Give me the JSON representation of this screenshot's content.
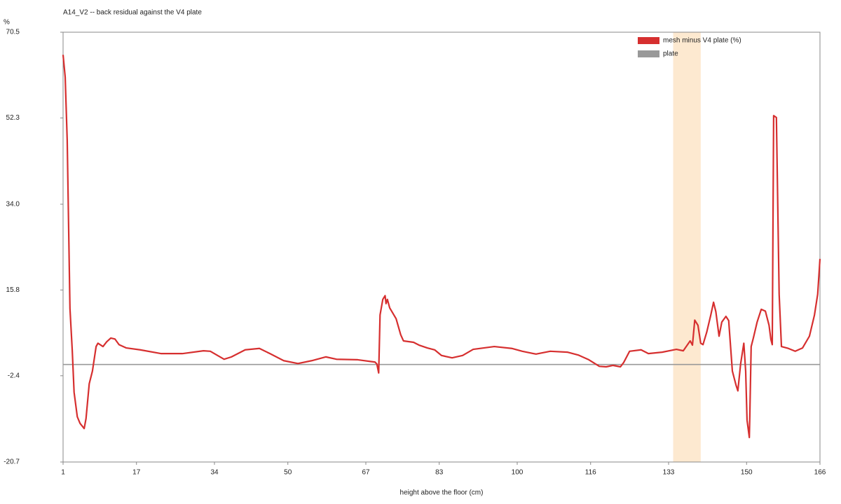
{
  "chart_data": {
    "type": "line",
    "title": "A14_V2 -- back residual against the V4 plate",
    "y_label": "%",
    "x_label": "height above the floor (cm)",
    "xlim": [
      1,
      166
    ],
    "xticks": [
      1,
      17,
      34,
      50,
      67,
      83,
      100,
      116,
      133,
      150,
      166
    ],
    "ylim": [
      -20.7,
      70.5
    ],
    "yticks": [
      -20.7,
      -2.4,
      15.8,
      {
        "value": 34,
        "label": "34.0"
      },
      52.3,
      70.5
    ],
    "grid": false,
    "legend": "upper right",
    "highlight_span": [
      134,
      140
    ],
    "highlight_color": "#fde9d0",
    "series": [
      {
        "name": "mesh minus V4 plate (%)",
        "color": "#d62f2f",
        "x": [
          1,
          1.46,
          1.9,
          2.2,
          2.5,
          3.0,
          3.4,
          4.1,
          4.7,
          5.6,
          6.0,
          6.7,
          7.4,
          8.2,
          8.6,
          9.7,
          10.5,
          11.4,
          12.3,
          13.2,
          14.8,
          17.8,
          22.4,
          27.0,
          31.6,
          33.1,
          36.1,
          37.7,
          40.7,
          43.8,
          46.1,
          49.1,
          52.2,
          55.2,
          58.3,
          60.6,
          65.2,
          69.0,
          69.4,
          69.8,
          70.1,
          70.7,
          71.2,
          71.4,
          71.7,
          72.2,
          73.6,
          74.6,
          75.2,
          77.4,
          78.6,
          80.4,
          82.0,
          83.5,
          85.8,
          88.1,
          90.4,
          95.0,
          98.8,
          101.1,
          104.1,
          107.2,
          111.0,
          113.3,
          115.6,
          117.9,
          119.4,
          120.9,
          122.5,
          123.2,
          124.5,
          127.0,
          128.6,
          131.6,
          134.7,
          136.2,
          137.7,
          138.2,
          138.7,
          139.4,
          140.0,
          140.5,
          141.3,
          142.2,
          142.8,
          143.3,
          144.0,
          144.6,
          145.5,
          146.1,
          146.9,
          147.7,
          148.1,
          148.7,
          149.4,
          149.8,
          150.1,
          150.6,
          150.7,
          151.0,
          151.5,
          152.3,
          153.2,
          154.1,
          154.9,
          155.3,
          155.6,
          155.9,
          156.5,
          157.1,
          157.6,
          159.1,
          160.6,
          162.2,
          163.7,
          164.8,
          165.5,
          166.0
        ],
        "values": [
          65.7,
          61.0,
          47.6,
          29.8,
          11.9,
          3.0,
          -5.9,
          -11.1,
          -12.5,
          -13.6,
          -11.5,
          -4.1,
          -1.4,
          3.8,
          4.5,
          3.8,
          4.8,
          5.6,
          5.4,
          4.2,
          3.5,
          3.1,
          2.3,
          2.3,
          2.9,
          2.8,
          1.1,
          1.6,
          3.1,
          3.4,
          2.3,
          0.8,
          0.2,
          0.8,
          1.6,
          1.1,
          1.0,
          0.5,
          0.1,
          -1.8,
          10.5,
          13.8,
          14.6,
          12.9,
          13.8,
          12.0,
          9.7,
          6.3,
          5.0,
          4.7,
          4.1,
          3.5,
          3.1,
          1.9,
          1.4,
          1.9,
          3.2,
          3.8,
          3.4,
          2.8,
          2.2,
          2.8,
          2.6,
          2.0,
          1.0,
          -0.4,
          -0.5,
          -0.2,
          -0.5,
          0.4,
          2.8,
          3.1,
          2.3,
          2.6,
          3.2,
          2.9,
          5.0,
          4.1,
          9.4,
          8.3,
          4.5,
          4.2,
          6.8,
          10.5,
          13.2,
          11.2,
          6.0,
          9.0,
          10.2,
          9.3,
          -1.4,
          -4.4,
          -5.6,
          0.1,
          4.5,
          -1.4,
          -11.8,
          -15.5,
          -11.1,
          3.8,
          5.7,
          9.0,
          11.7,
          11.3,
          8.3,
          5.3,
          4.2,
          52.8,
          52.4,
          14.9,
          3.8,
          3.4,
          2.8,
          3.5,
          6.0,
          10.5,
          14.9,
          22.4
        ]
      },
      {
        "name": "plate",
        "color": "#999999",
        "x": [
          1,
          166
        ],
        "values": [
          0,
          0
        ]
      }
    ]
  }
}
